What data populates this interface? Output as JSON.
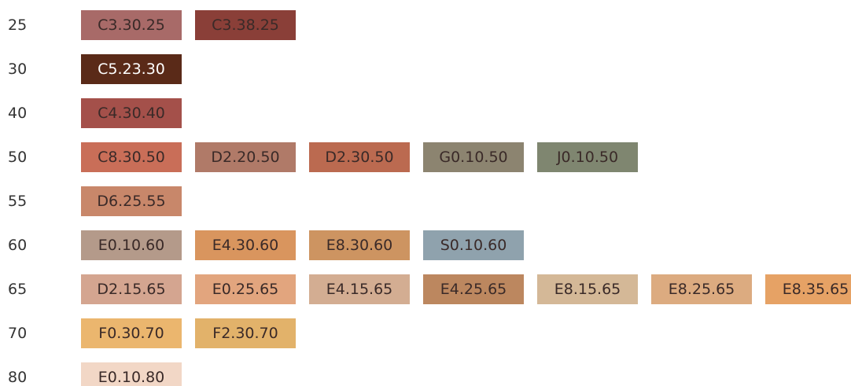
{
  "rows": [
    {
      "label": "25",
      "swatches": [
        {
          "code": "C3.30.25",
          "color": "#a86a68"
        },
        {
          "code": "C3.38.25",
          "color": "#8a3f38"
        }
      ]
    },
    {
      "label": "30",
      "swatches": [
        {
          "code": "C5.23.30",
          "color": "#5a2a18",
          "text_color": "#ffffff"
        }
      ]
    },
    {
      "label": "40",
      "swatches": [
        {
          "code": "C4.30.40",
          "color": "#a4504a"
        }
      ]
    },
    {
      "label": "50",
      "swatches": [
        {
          "code": "C8.30.50",
          "color": "#c96e58"
        },
        {
          "code": "D2.20.50",
          "color": "#b07a68"
        },
        {
          "code": "D2.30.50",
          "color": "#bb6a50"
        },
        {
          "code": "G0.10.50",
          "color": "#8c8470"
        },
        {
          "code": "J0.10.50",
          "color": "#7f8670"
        }
      ]
    },
    {
      "label": "55",
      "swatches": [
        {
          "code": "D6.25.55",
          "color": "#c8876a"
        }
      ]
    },
    {
      "label": "60",
      "swatches": [
        {
          "code": "E0.10.60",
          "color": "#b49a8a"
        },
        {
          "code": "E4.30.60",
          "color": "#d9955e"
        },
        {
          "code": "E8.30.60",
          "color": "#cd9461"
        },
        {
          "code": "S0.10.60",
          "color": "#8fa2ad"
        }
      ]
    },
    {
      "label": "65",
      "swatches": [
        {
          "code": "D2.15.65",
          "color": "#d4a590"
        },
        {
          "code": "E0.25.65",
          "color": "#e2a57e"
        },
        {
          "code": "E4.15.65",
          "color": "#d3ad92"
        },
        {
          "code": "E4.25.65",
          "color": "#bc875f"
        },
        {
          "code": "E8.15.65",
          "color": "#d4b897"
        },
        {
          "code": "E8.25.65",
          "color": "#dcab80"
        },
        {
          "code": "E8.35.65",
          "color": "#e6a265"
        }
      ]
    },
    {
      "label": "70",
      "swatches": [
        {
          "code": "F0.30.70",
          "color": "#ebb66e"
        },
        {
          "code": "F2.30.70",
          "color": "#e2b26a"
        }
      ]
    },
    {
      "label": "80",
      "swatches": [
        {
          "code": "E0.10.80",
          "color": "#f2d7c6"
        }
      ]
    }
  ]
}
